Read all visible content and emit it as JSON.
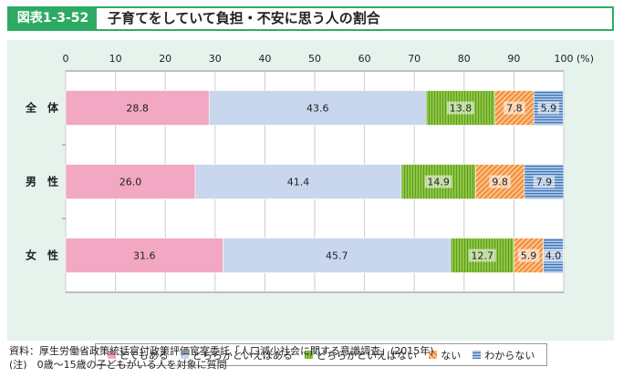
{
  "figure": {
    "label": "図表1-3-52",
    "title": "子育てをしていて負担・不安に思う人の割合"
  },
  "chart_data": {
    "type": "bar",
    "orientation": "horizontal",
    "stacked": true,
    "unit_label": "(%)",
    "xlim": [
      0,
      100
    ],
    "ticks": [
      0,
      10,
      20,
      30,
      40,
      50,
      60,
      70,
      80,
      90,
      100
    ],
    "categories": [
      "全　体",
      "男　性",
      "女　性"
    ],
    "series": [
      {
        "name": "とてもある",
        "color": "#f2a7c2",
        "pattern": "solid",
        "values": [
          28.8,
          26.0,
          31.6
        ],
        "labels": [
          "28.8",
          "26.0",
          "31.6"
        ]
      },
      {
        "name": "どちらかといえばある",
        "color": "#c8d6ee",
        "pattern": "solid",
        "values": [
          43.6,
          41.4,
          45.7
        ],
        "labels": [
          "43.6",
          "41.4",
          "45.7"
        ]
      },
      {
        "name": "どちらかといえばない",
        "color": "#8dc63f",
        "pattern": "vertical-stripes",
        "values": [
          13.8,
          14.9,
          12.7
        ],
        "labels": [
          "13.8",
          "14.9",
          "12.7"
        ]
      },
      {
        "name": "ない",
        "color": "#f7a35c",
        "pattern": "diagonal-stripes",
        "values": [
          7.8,
          9.8,
          5.9
        ],
        "labels": [
          "7.8",
          "9.8",
          "5.9"
        ]
      },
      {
        "name": "わからない",
        "color": "#5b8fc7",
        "pattern": "horizontal-stripes",
        "values": [
          5.9,
          7.9,
          4.0
        ],
        "labels": [
          "5.9",
          "7.9",
          "4.0"
        ]
      }
    ]
  },
  "notes": {
    "source": "資料：厚生労働省政策統括官付政策評価官室委託「人口減少社会に関する意識調査」(2015年)",
    "note": "(注)　0歳～15歳の子どもがいる人を対象に質問"
  }
}
